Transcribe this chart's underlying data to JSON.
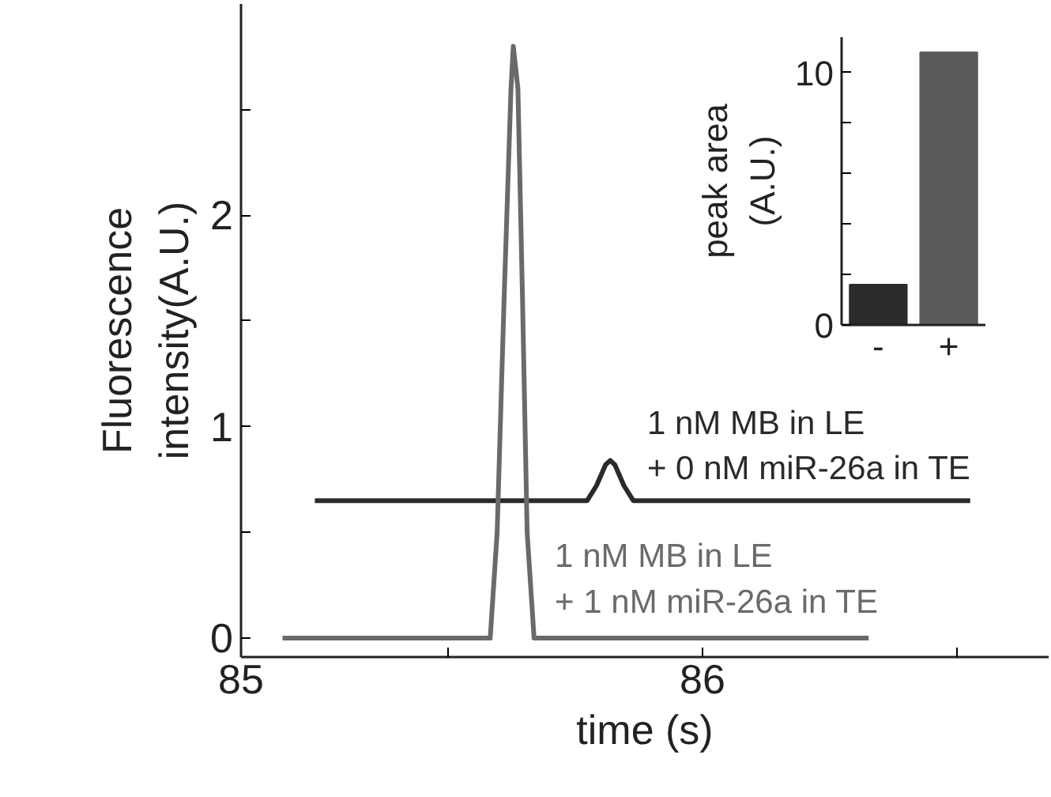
{
  "chart_data": [
    {
      "type": "line",
      "xlabel": "time (s)",
      "ylabel": "Fluorescence\nintensity(A.U.)",
      "xlim": [
        85,
        86.75
      ],
      "ylim": [
        -0.09,
        3.0
      ],
      "xticks": [
        85,
        {
          "value": 85.45,
          "label": null
        },
        86,
        {
          "value": 86.55,
          "label": null
        }
      ],
      "yticks": [
        0,
        {
          "value": 0.5,
          "label": null
        },
        1,
        {
          "value": 1.5,
          "label": null
        },
        2,
        {
          "value": 2.5,
          "label": null
        }
      ],
      "grid": false,
      "line_style": "solid",
      "series": [
        {
          "name": "1 nM MB in LE\n+ 0 nM miR-26a in TE",
          "color": "#2a2a2a",
          "x": [
            85.16,
            85.75,
            85.77,
            85.79,
            85.8,
            85.81,
            85.83,
            85.85,
            86.58
          ],
          "values": [
            0.65,
            0.65,
            0.72,
            0.82,
            0.84,
            0.82,
            0.72,
            0.65,
            0.65
          ]
        },
        {
          "name": "1 nM MB in LE\n+ 1 nM miR-26a in TE",
          "color": "#6a6a6a",
          "x": [
            85.09,
            85.54,
            85.555,
            85.57,
            85.585,
            85.59,
            85.6,
            85.61,
            85.62,
            85.635,
            86.36
          ],
          "values": [
            0,
            0,
            0.5,
            1.6,
            2.6,
            2.8,
            2.6,
            1.6,
            0.5,
            0,
            0
          ]
        }
      ]
    },
    {
      "type": "bar",
      "ylabel": "peak area\n(A.U.)",
      "categories": [
        "-",
        "+"
      ],
      "values": [
        1.6,
        10.8
      ],
      "colors": [
        "#2b2b2b",
        "#5a5a5a"
      ],
      "ylim": [
        0,
        11.4
      ],
      "yticks": [
        0,
        {
          "value": 2,
          "label": null
        },
        {
          "value": 4,
          "label": null
        },
        {
          "value": 6,
          "label": null
        },
        {
          "value": 8,
          "label": null
        },
        10
      ],
      "grid": false
    }
  ]
}
